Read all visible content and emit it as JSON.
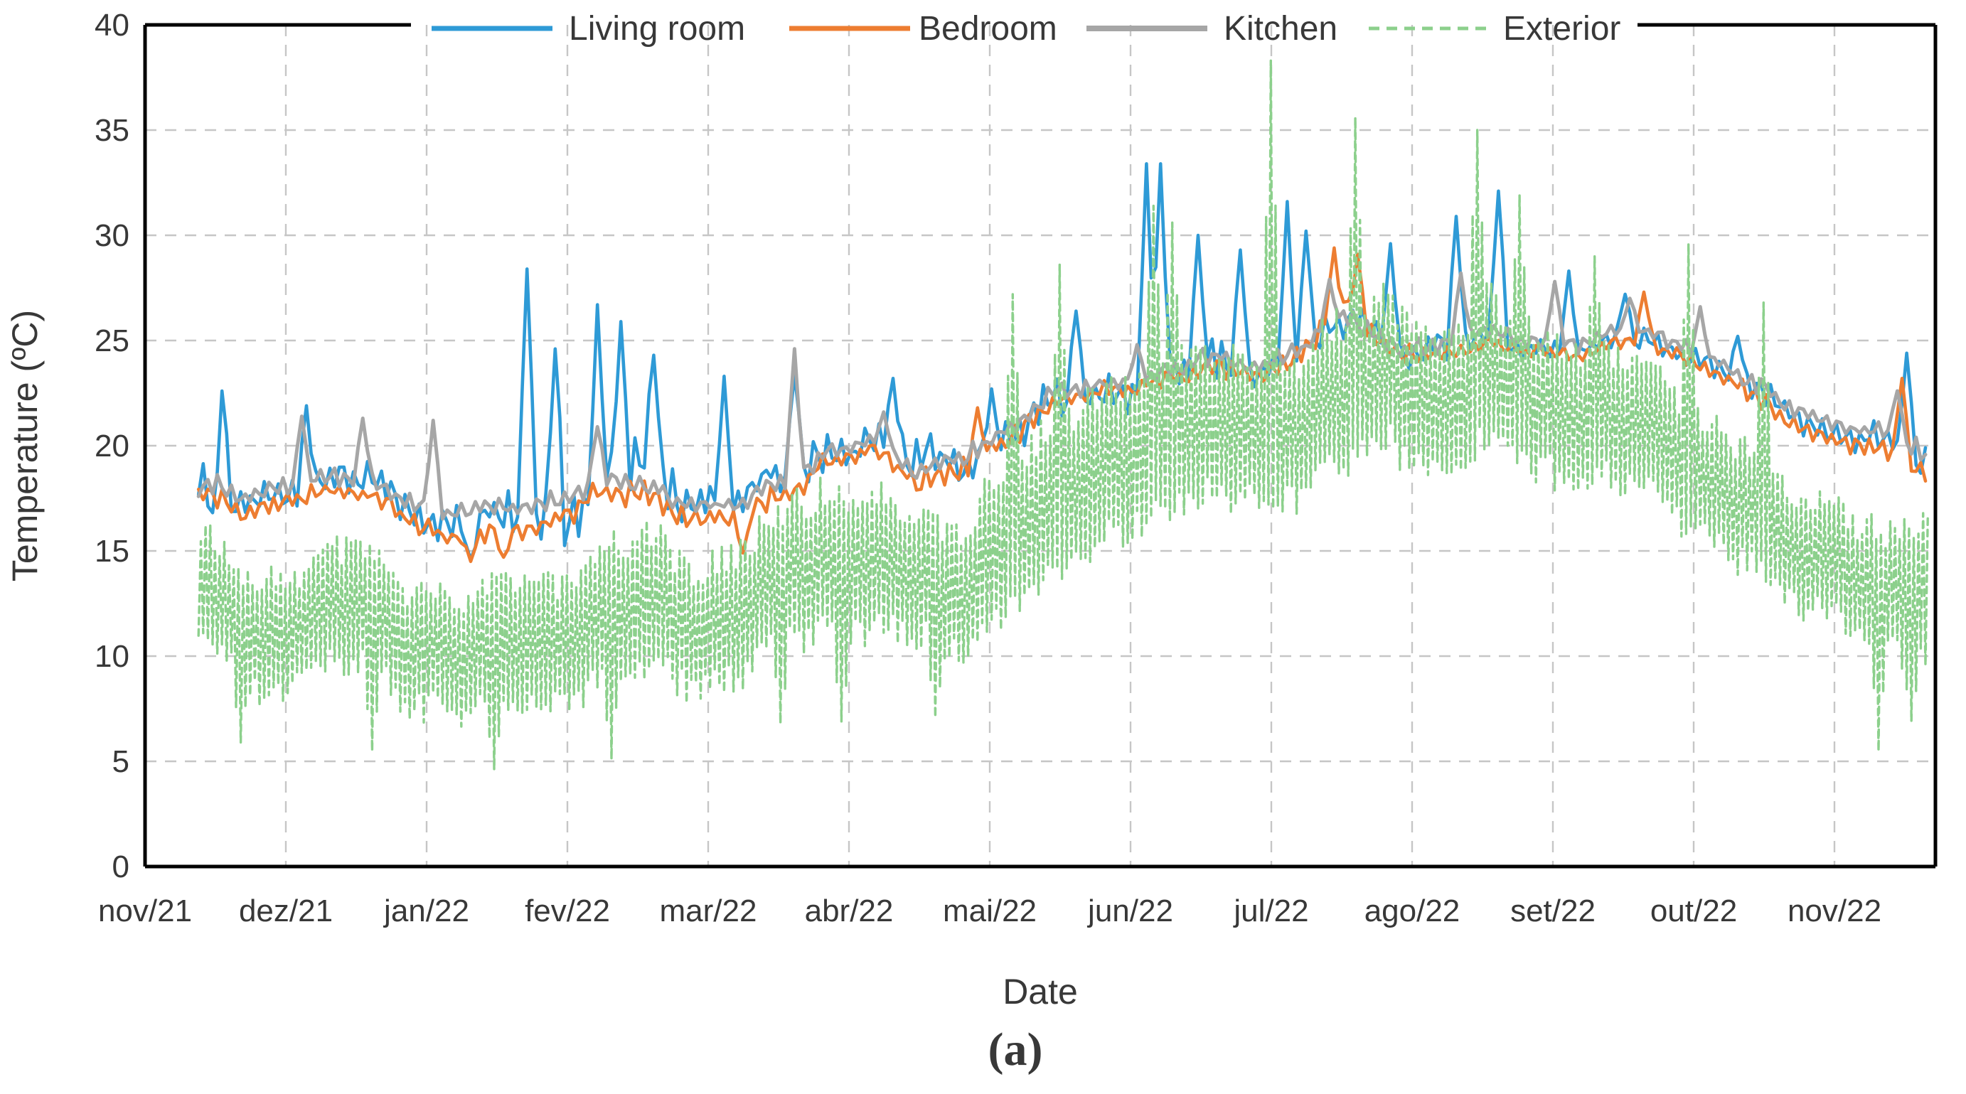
{
  "figure": {
    "caption": "(a)",
    "background": "#ffffff"
  },
  "chart_data": {
    "type": "line",
    "title": "",
    "xlabel": "Date",
    "ylabel": "Temperature (ºC)",
    "ylim": [
      0,
      40
    ],
    "yticks": [
      0,
      5,
      10,
      15,
      20,
      25,
      30,
      35,
      40
    ],
    "x_ticklabels": [
      "nov/21",
      "dez/21",
      "jan/22",
      "fev/22",
      "mar/22",
      "abr/22",
      "mai/22",
      "jun/22",
      "jul/22",
      "ago/22",
      "set/22",
      "out/22",
      "nov/22"
    ],
    "grid": "dashed-gray-both-axes",
    "legend_position": "top",
    "frame_color": "#000000",
    "gridline_color": "#c6c6c6",
    "time_span": {
      "start_t_months_after_nov1_21": 0.38,
      "end_t_months_after_nov1_21": 12.67
    },
    "series": [
      {
        "name": "Living room",
        "color": "#2E9AD6",
        "dash": false,
        "sampling": "daily",
        "points": [
          [
            0.38,
            17.6,
            2.0
          ],
          [
            0.7,
            17.0,
            1.9
          ],
          [
            1.05,
            17.9,
            1.7
          ],
          [
            1.45,
            18.1,
            1.5
          ],
          [
            1.8,
            17.6,
            1.6
          ],
          [
            2.1,
            16.4,
            1.6
          ],
          [
            2.45,
            16.6,
            1.9
          ],
          [
            2.8,
            17.6,
            2.8
          ],
          [
            3.15,
            18.3,
            3.2
          ],
          [
            3.5,
            18.9,
            3.0
          ],
          [
            3.85,
            17.7,
            2.0
          ],
          [
            4.2,
            17.2,
            1.7
          ],
          [
            4.55,
            18.0,
            2.0
          ],
          [
            4.85,
            19.6,
            2.0
          ],
          [
            5.15,
            20.1,
            1.6
          ],
          [
            5.5,
            18.9,
            2.0
          ],
          [
            5.85,
            19.6,
            1.9
          ],
          [
            6.2,
            20.9,
            1.7
          ],
          [
            6.55,
            22.4,
            1.7
          ],
          [
            6.9,
            23.0,
            1.6
          ],
          [
            7.25,
            23.3,
            1.7
          ],
          [
            7.6,
            23.8,
            1.9
          ],
          [
            7.95,
            23.6,
            1.6
          ],
          [
            8.3,
            24.2,
            1.7
          ],
          [
            8.6,
            25.8,
            1.8
          ],
          [
            8.9,
            24.6,
            1.4
          ],
          [
            9.2,
            24.6,
            1.4
          ],
          [
            9.55,
            25.1,
            1.3
          ],
          [
            9.9,
            25.0,
            1.2
          ],
          [
            10.25,
            24.7,
            1.0
          ],
          [
            10.6,
            25.2,
            1.2
          ],
          [
            10.95,
            24.6,
            1.2
          ],
          [
            11.25,
            23.2,
            1.2
          ],
          [
            11.6,
            21.6,
            1.2
          ],
          [
            11.95,
            20.7,
            1.2
          ],
          [
            12.3,
            19.9,
            1.5
          ],
          [
            12.67,
            18.8,
            1.5
          ]
        ],
        "spikes": [
          [
            0.5,
            14.9
          ],
          [
            0.55,
            22.6
          ],
          [
            1.15,
            21.9
          ],
          [
            2.3,
            14.6
          ],
          [
            2.72,
            28.4
          ],
          [
            2.9,
            24.6
          ],
          [
            3.2,
            26.7
          ],
          [
            3.38,
            25.9
          ],
          [
            3.62,
            24.3
          ],
          [
            4.1,
            23.3
          ],
          [
            4.62,
            23.4
          ],
          [
            5.3,
            23.2
          ],
          [
            6.0,
            22.7
          ],
          [
            6.6,
            26.4
          ],
          [
            7.1,
            33.4
          ],
          [
            7.22,
            33.4
          ],
          [
            7.47,
            30.0
          ],
          [
            7.78,
            29.3
          ],
          [
            8.12,
            31.6
          ],
          [
            8.25,
            30.2
          ],
          [
            8.85,
            29.6
          ],
          [
            9.32,
            30.9
          ],
          [
            9.6,
            32.1
          ],
          [
            10.1,
            28.3
          ],
          [
            10.5,
            27.2
          ],
          [
            11.3,
            25.2
          ],
          [
            12.5,
            24.4
          ]
        ]
      },
      {
        "name": "Bedroom",
        "color": "#ED7D31",
        "dash": false,
        "sampling": "daily",
        "points": [
          [
            0.38,
            17.4,
            1.2
          ],
          [
            0.7,
            16.7,
            1.0
          ],
          [
            1.05,
            17.5,
            1.0
          ],
          [
            1.45,
            17.6,
            0.9
          ],
          [
            1.8,
            17.0,
            1.0
          ],
          [
            2.1,
            15.8,
            0.9
          ],
          [
            2.45,
            15.6,
            0.9
          ],
          [
            2.8,
            16.4,
            1.0
          ],
          [
            3.15,
            17.8,
            1.1
          ],
          [
            3.5,
            17.6,
            1.3
          ],
          [
            3.85,
            16.8,
            1.1
          ],
          [
            4.2,
            16.4,
            1.1
          ],
          [
            4.55,
            17.2,
            1.1
          ],
          [
            4.85,
            19.4,
            1.1
          ],
          [
            5.15,
            19.9,
            0.9
          ],
          [
            5.5,
            17.9,
            1.1
          ],
          [
            5.85,
            19.4,
            1.1
          ],
          [
            6.2,
            20.8,
            1.0
          ],
          [
            6.55,
            22.3,
            1.0
          ],
          [
            6.9,
            22.9,
            0.9
          ],
          [
            7.25,
            23.1,
            0.9
          ],
          [
            7.6,
            23.6,
            1.0
          ],
          [
            7.95,
            23.4,
            0.9
          ],
          [
            8.3,
            24.6,
            1.2
          ],
          [
            8.55,
            26.3,
            1.3
          ],
          [
            8.8,
            24.8,
            1.0
          ],
          [
            9.2,
            24.2,
            0.9
          ],
          [
            9.55,
            24.8,
            0.8
          ],
          [
            9.9,
            24.7,
            0.7
          ],
          [
            10.25,
            24.4,
            0.7
          ],
          [
            10.6,
            25.1,
            0.8
          ],
          [
            10.95,
            24.4,
            0.8
          ],
          [
            11.25,
            23.0,
            0.9
          ],
          [
            11.6,
            21.3,
            0.9
          ],
          [
            11.95,
            20.4,
            0.9
          ],
          [
            12.3,
            19.6,
            1.1
          ],
          [
            12.67,
            18.3,
            1.3
          ]
        ],
        "spikes": [
          [
            2.32,
            14.5
          ],
          [
            2.55,
            14.7
          ],
          [
            4.25,
            14.9
          ],
          [
            5.9,
            21.8
          ],
          [
            8.45,
            29.4
          ],
          [
            8.6,
            29.1
          ],
          [
            10.65,
            27.3
          ],
          [
            12.47,
            23.2
          ]
        ]
      },
      {
        "name": "Kitchen",
        "color": "#A6A6A6",
        "dash": false,
        "sampling": "daily",
        "points": [
          [
            0.38,
            17.9,
            1.1
          ],
          [
            0.7,
            17.4,
            1.0
          ],
          [
            1.05,
            18.2,
            0.9
          ],
          [
            1.45,
            18.3,
            0.8
          ],
          [
            1.8,
            17.7,
            0.9
          ],
          [
            2.1,
            16.9,
            0.8
          ],
          [
            2.45,
            16.9,
            0.8
          ],
          [
            2.8,
            17.3,
            0.9
          ],
          [
            3.15,
            18.4,
            1.1
          ],
          [
            3.5,
            18.1,
            1.1
          ],
          [
            3.85,
            17.3,
            0.8
          ],
          [
            4.2,
            17.2,
            0.8
          ],
          [
            4.55,
            17.9,
            1.0
          ],
          [
            4.85,
            19.8,
            1.1
          ],
          [
            5.15,
            20.3,
            0.8
          ],
          [
            5.5,
            18.4,
            0.9
          ],
          [
            5.85,
            19.9,
            1.1
          ],
          [
            6.2,
            21.2,
            0.9
          ],
          [
            6.55,
            22.7,
            0.9
          ],
          [
            6.9,
            23.3,
            0.8
          ],
          [
            7.25,
            23.5,
            0.8
          ],
          [
            7.6,
            24.1,
            0.9
          ],
          [
            7.95,
            23.8,
            0.8
          ],
          [
            8.3,
            24.8,
            1.0
          ],
          [
            8.55,
            26.0,
            1.1
          ],
          [
            8.8,
            24.9,
            0.9
          ],
          [
            9.2,
            24.7,
            0.9
          ],
          [
            9.55,
            25.3,
            0.8
          ],
          [
            9.9,
            25.2,
            0.7
          ],
          [
            10.25,
            24.9,
            0.7
          ],
          [
            10.6,
            25.6,
            0.7
          ],
          [
            10.95,
            24.9,
            0.8
          ],
          [
            11.25,
            23.6,
            0.8
          ],
          [
            11.6,
            22.0,
            0.8
          ],
          [
            11.95,
            21.2,
            0.9
          ],
          [
            12.3,
            20.4,
            1.0
          ],
          [
            12.67,
            19.3,
            1.2
          ]
        ],
        "spikes": [
          [
            1.1,
            21.4
          ],
          [
            1.55,
            21.3
          ],
          [
            2.05,
            21.2
          ],
          [
            3.2,
            20.9
          ],
          [
            4.6,
            24.6
          ],
          [
            5.25,
            21.6
          ],
          [
            7.05,
            24.8
          ],
          [
            8.4,
            27.9
          ],
          [
            9.35,
            28.2
          ],
          [
            10.0,
            27.8
          ],
          [
            10.55,
            27.0
          ],
          [
            11.05,
            26.6
          ],
          [
            12.45,
            22.6
          ]
        ]
      },
      {
        "name": "Exterior",
        "color": "#8CD08C",
        "dash": true,
        "sampling": "twice-daily",
        "points": [
          [
            0.45,
            12.5,
            3.2
          ],
          [
            0.8,
            10.8,
            3.6
          ],
          [
            1.15,
            11.5,
            3.4
          ],
          [
            1.5,
            11.8,
            3.6
          ],
          [
            1.85,
            10.8,
            3.6
          ],
          [
            2.2,
            10.0,
            3.6
          ],
          [
            2.55,
            10.5,
            3.6
          ],
          [
            2.9,
            11.2,
            3.6
          ],
          [
            3.25,
            12.0,
            4.0
          ],
          [
            3.6,
            12.4,
            4.2
          ],
          [
            3.95,
            11.4,
            3.6
          ],
          [
            4.3,
            11.8,
            3.9
          ],
          [
            4.65,
            13.6,
            4.4
          ],
          [
            5.0,
            14.6,
            4.4
          ],
          [
            5.35,
            13.8,
            4.0
          ],
          [
            5.7,
            12.8,
            3.6
          ],
          [
            6.05,
            15.4,
            4.4
          ],
          [
            6.4,
            16.8,
            4.5
          ],
          [
            6.75,
            19.0,
            4.5
          ],
          [
            7.1,
            20.2,
            4.6
          ],
          [
            7.45,
            20.4,
            4.4
          ],
          [
            7.8,
            21.0,
            4.4
          ],
          [
            8.15,
            20.4,
            4.2
          ],
          [
            8.5,
            21.6,
            4.5
          ],
          [
            8.85,
            23.6,
            4.5
          ],
          [
            9.2,
            21.6,
            4.2
          ],
          [
            9.55,
            23.2,
            4.4
          ],
          [
            9.9,
            22.6,
            4.2
          ],
          [
            10.25,
            21.0,
            4.0
          ],
          [
            10.6,
            21.2,
            4.0
          ],
          [
            10.95,
            19.6,
            3.8
          ],
          [
            11.3,
            17.0,
            3.6
          ],
          [
            11.65,
            15.2,
            3.5
          ],
          [
            12.0,
            14.4,
            3.5
          ],
          [
            12.35,
            12.2,
            3.6
          ],
          [
            12.67,
            12.6,
            4.4
          ]
        ],
        "spikes": [
          [
            0.66,
            5.9
          ],
          [
            1.6,
            5.5
          ],
          [
            2.48,
            4.6
          ],
          [
            3.3,
            5.1
          ],
          [
            4.5,
            6.8
          ],
          [
            4.95,
            6.9
          ],
          [
            5.6,
            7.1
          ],
          [
            6.15,
            27.2
          ],
          [
            6.5,
            28.6
          ],
          [
            7.15,
            31.4
          ],
          [
            7.3,
            30.6
          ],
          [
            7.98,
            38.3
          ],
          [
            8.6,
            35.6
          ],
          [
            9.45,
            35.0
          ],
          [
            9.75,
            31.9
          ],
          [
            10.3,
            29.0
          ],
          [
            10.95,
            29.6
          ],
          [
            11.5,
            26.8
          ],
          [
            12.3,
            5.5
          ],
          [
            12.55,
            6.9
          ]
        ]
      }
    ]
  }
}
